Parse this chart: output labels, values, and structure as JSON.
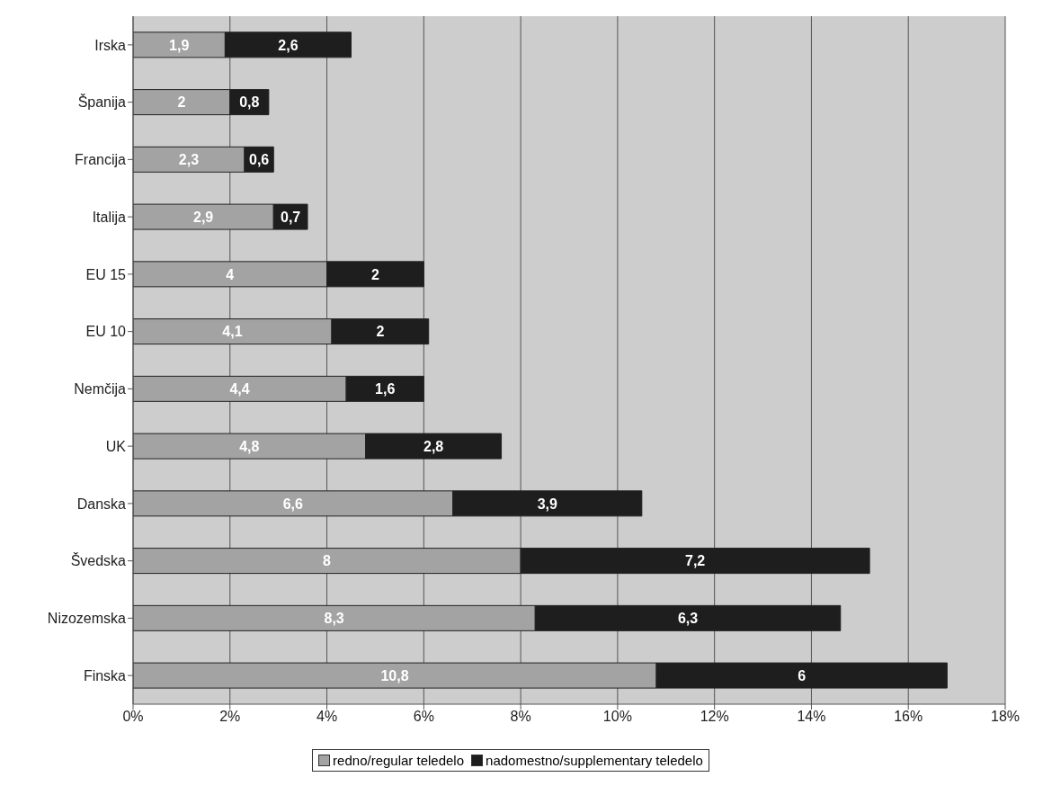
{
  "chart_data": {
    "type": "bar",
    "orientation": "horizontal",
    "stacked": true,
    "categories": [
      "Irska",
      "Španija",
      "Francija",
      "Italija",
      "EU 15",
      "EU 10",
      "Nemčija",
      "UK",
      "Danska",
      "Švedska",
      "Nizozemska",
      "Finska"
    ],
    "series": [
      {
        "name": "redno/regular teledelo",
        "color": "#a3a3a3",
        "values": [
          1.9,
          2,
          2.3,
          2.9,
          4,
          4.1,
          4.4,
          4.8,
          6.6,
          8,
          8.3,
          10.8
        ],
        "value_labels": [
          "1,9",
          "2",
          "2,3",
          "2,9",
          "4",
          "4,1",
          "4,4",
          "4,8",
          "6,6",
          "8",
          "8,3",
          "10,8"
        ]
      },
      {
        "name": "nadomestno/supplementary teledelo",
        "color": "#1e1e1e",
        "values": [
          2.6,
          0.8,
          0.6,
          0.7,
          2,
          2,
          1.6,
          2.8,
          3.9,
          7.2,
          6.3,
          6
        ],
        "value_labels": [
          "2,6",
          "0,8",
          "0,6",
          "0,7",
          "2",
          "2",
          "1,6",
          "2,8",
          "3,9",
          "7,2",
          "6,3",
          "6"
        ]
      }
    ],
    "xlim": [
      0,
      18
    ],
    "xticks": [
      {
        "value": 0,
        "label": "0%"
      },
      {
        "value": 2,
        "label": "2%"
      },
      {
        "value": 4,
        "label": "4%"
      },
      {
        "value": 6,
        "label": "6%"
      },
      {
        "value": 8,
        "label": "8%"
      },
      {
        "value": 10,
        "label": "10%"
      },
      {
        "value": 12,
        "label": "12%"
      },
      {
        "value": 14,
        "label": "14%"
      },
      {
        "value": 16,
        "label": "16%"
      },
      {
        "value": 18,
        "label": "18%"
      }
    ],
    "grid": "x",
    "legend": "bottom"
  }
}
